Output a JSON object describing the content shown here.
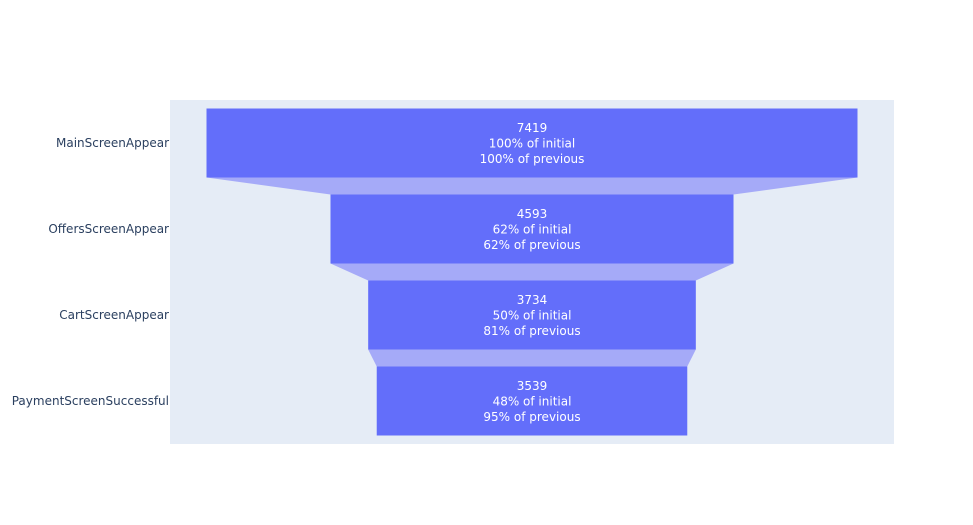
{
  "chart_data": {
    "type": "funnel",
    "title": "",
    "categories": [
      "MainScreenAppear",
      "OffersScreenAppear",
      "CartScreenAppear",
      "PaymentScreenSuccessful"
    ],
    "values": [
      7419,
      4593,
      3734,
      3539
    ],
    "text_info": [
      {
        "value": "7419",
        "initial": "100% of initial",
        "previous": "100% of previous"
      },
      {
        "value": "4593",
        "initial": "62% of initial",
        "previous": "62% of previous"
      },
      {
        "value": "3734",
        "initial": "50% of initial",
        "previous": "81% of previous"
      },
      {
        "value": "3539",
        "initial": "48% of initial",
        "previous": "95% of previous"
      }
    ],
    "colors": {
      "bar": "#636efa",
      "connector": "#a5aaf8",
      "plot_bg": "#e5ecf6",
      "tick_text": "#2a3f5f",
      "label_text": "#ffffff"
    }
  }
}
